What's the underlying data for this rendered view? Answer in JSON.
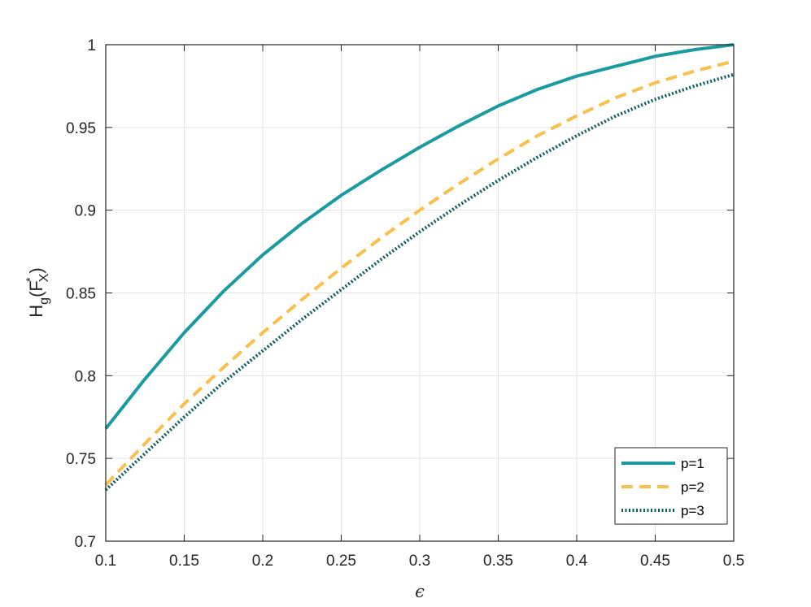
{
  "chart_data": {
    "type": "line",
    "title": "",
    "xlabel": "ϵ",
    "ylabel": {
      "base": "H",
      "sub": "g",
      "open": "(F",
      "sup": "*",
      "sub2": "X",
      "close": ")"
    },
    "xlim": [
      0.1,
      0.5
    ],
    "ylim": [
      0.7,
      1.0
    ],
    "x_ticks": [
      0.1,
      0.15,
      0.2,
      0.25,
      0.3,
      0.35,
      0.4,
      0.45,
      0.5
    ],
    "x_tick_labels": [
      "0.1",
      "0.15",
      "0.2",
      "0.25",
      "0.3",
      "0.35",
      "0.4",
      "0.45",
      "0.5"
    ],
    "y_ticks": [
      0.7,
      0.75,
      0.8,
      0.85,
      0.9,
      0.95,
      1.0
    ],
    "y_tick_labels": [
      "0.7",
      "0.75",
      "0.8",
      "0.85",
      "0.9",
      "0.95",
      "1"
    ],
    "grid": true,
    "legend_position": "bottom-right",
    "x": [
      0.1,
      0.125,
      0.15,
      0.175,
      0.2,
      0.225,
      0.25,
      0.275,
      0.3,
      0.325,
      0.35,
      0.375,
      0.4,
      0.425,
      0.45,
      0.475,
      0.5
    ],
    "series": [
      {
        "name": "p=1",
        "color": "#1b9aa0",
        "style": "solid",
        "values": [
          0.768,
          0.798,
          0.826,
          0.851,
          0.873,
          0.892,
          0.909,
          0.924,
          0.938,
          0.951,
          0.963,
          0.973,
          0.981,
          0.987,
          0.993,
          0.997,
          1.0
        ]
      },
      {
        "name": "p=2",
        "color": "#f7c04f",
        "style": "dashed",
        "values": [
          0.734,
          0.759,
          0.783,
          0.805,
          0.826,
          0.846,
          0.865,
          0.883,
          0.9,
          0.916,
          0.931,
          0.945,
          0.957,
          0.968,
          0.977,
          0.984,
          0.99
        ]
      },
      {
        "name": "p=3",
        "color": "#0b5e5d",
        "style": "dotted",
        "values": [
          0.731,
          0.753,
          0.775,
          0.796,
          0.815,
          0.834,
          0.852,
          0.87,
          0.887,
          0.903,
          0.918,
          0.932,
          0.945,
          0.957,
          0.967,
          0.975,
          0.982
        ]
      }
    ]
  }
}
